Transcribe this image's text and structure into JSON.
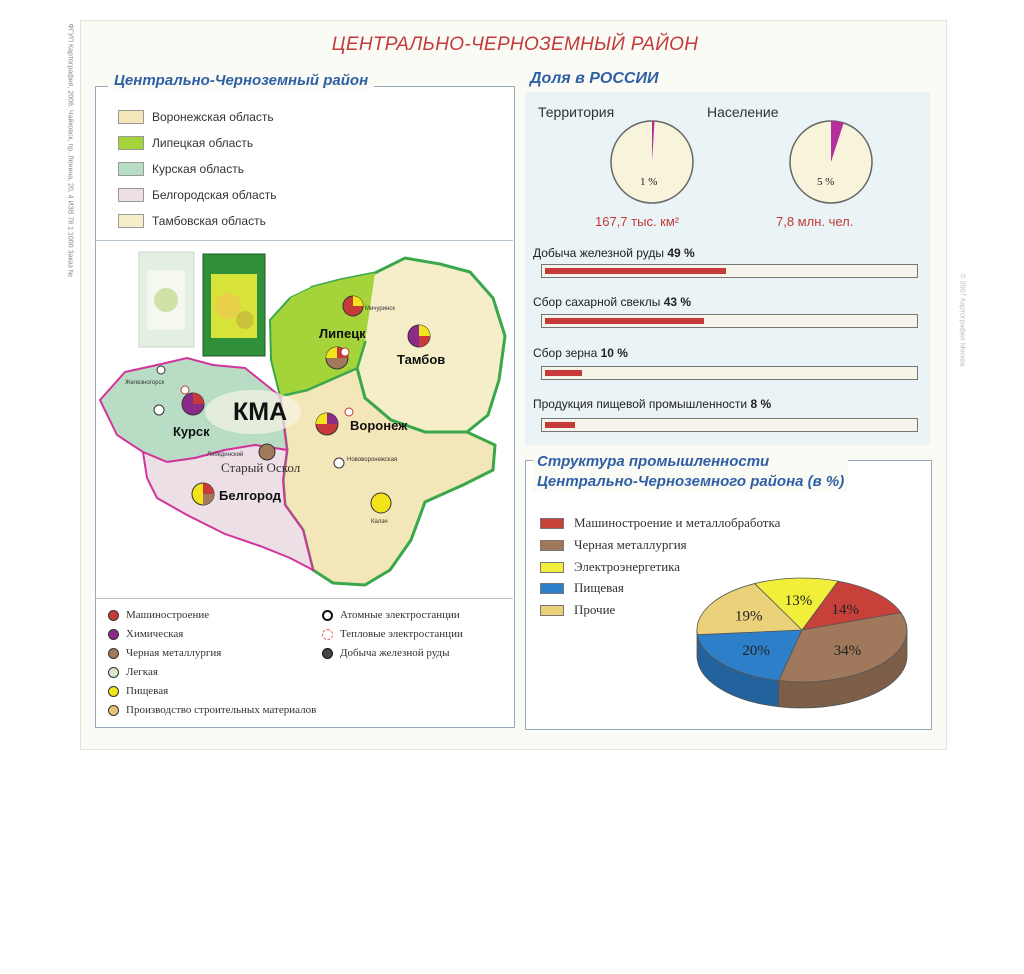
{
  "title": "ЦЕНТРАЛЬНО-ЧЕРНОЗЕМНЫЙ РАЙОН",
  "side_text": "ФГУП Картография, 2006. Чайковск, пр. Ленина, 20, 4 ИЗВ 78 1:1000 Заказ №",
  "side_text_right": "© 2007 Картография Москва",
  "map_panel": {
    "title": "Центрально-Черноземный район",
    "regions": [
      {
        "label": "Воронежская область",
        "color": "#f3e6b8"
      },
      {
        "label": "Липецкая область",
        "color": "#a4d43a"
      },
      {
        "label": "Курская область",
        "color": "#b9ddc4"
      },
      {
        "label": "Белгородская область",
        "color": "#ecdfe6"
      },
      {
        "label": "Тамбовская область",
        "color": "#f6eec9"
      }
    ],
    "map_labels": {
      "kma": "КМА",
      "lipetsk": "Липецк",
      "tambov": "Тамбов",
      "kursk": "Курск",
      "voronezh": "Воронеж",
      "belgorod": "Белгород",
      "stary_oskol": "Старый Оскол",
      "metallogorsk": "Мичуринск",
      "zheleznogorsk": "Железногорск",
      "lebedinsky": "Лебединский",
      "novovoronezhsk": "Нововоронежская",
      "kalach": "Калач"
    },
    "legend": [
      {
        "label": "Машиностроение",
        "color": "#c73a3a",
        "icon": "industry-dot"
      },
      {
        "label": "Химическая",
        "color": "#8a2b8a",
        "icon": "industry-dot"
      },
      {
        "label": "Черная металлургия",
        "color": "#a07a5a",
        "icon": "industry-dot"
      },
      {
        "label": "Легкая",
        "color": "#d8e8d0",
        "icon": "industry-dot"
      },
      {
        "label": "Пищевая",
        "color": "#f2e31a",
        "icon": "industry-dot"
      },
      {
        "label": "Производство строительных материалов",
        "color": "#e9c27a",
        "icon": "industry-dot"
      },
      {
        "label": "Атомные электростанции",
        "icon": "atom-icon"
      },
      {
        "label": "Тепловые электростанции",
        "icon": "thermal-icon"
      },
      {
        "label": "Добыча железной руды",
        "icon": "ore-icon"
      }
    ]
  },
  "share_panel": {
    "title": "Доля в РОССИИ",
    "territory": {
      "label": "Территория",
      "percent_text": "1 %",
      "percent": 1,
      "value": "167,7 тыс. км²"
    },
    "population": {
      "label": "Население",
      "percent_text": "5 %",
      "percent": 5,
      "value": "7,8 млн. чел."
    },
    "bars": [
      {
        "label": "Добыча железной руды",
        "value_text": "49 %",
        "percent": 49
      },
      {
        "label": "Сбор сахарной свеклы",
        "value_text": "43 %",
        "percent": 43
      },
      {
        "label": "Сбор зерна",
        "value_text": "10 %",
        "percent": 10
      },
      {
        "label": "Продукция пищевой промышленности",
        "value_text": "8 %",
        "percent": 8
      }
    ]
  },
  "structure_panel": {
    "title_line1": "Структура промышленности",
    "title_line2": "Центрально-Черноземного района (в %)",
    "legend": [
      {
        "label": "Машиностроение и металлобработка",
        "color": "#c7413a"
      },
      {
        "label": "Черная металлургия",
        "color": "#a0785c"
      },
      {
        "label": "Электроэнергетика",
        "color": "#f2ef3a"
      },
      {
        "label": "Пищевая",
        "color": "#2d7fc9"
      },
      {
        "label": "Прочие",
        "color": "#ead17a"
      }
    ]
  },
  "chart_data": {
    "type": "pie",
    "title": "Структура промышленности Центрально-Черноземного района (в %)",
    "slices": [
      {
        "name": "Машиностроение и металлобработка",
        "value": 14,
        "label": "14%",
        "color": "#c7413a"
      },
      {
        "name": "Черная металлургия",
        "value": 34,
        "label": "34%",
        "color": "#a0785c"
      },
      {
        "name": "Пищевая",
        "value": 20,
        "label": "20%",
        "color": "#2d7fc9"
      },
      {
        "name": "Прочие",
        "value": 19,
        "label": "19%",
        "color": "#ead17a"
      },
      {
        "name": "Электроэнергетика",
        "value": 13,
        "label": "13%",
        "color": "#f2ef3a"
      }
    ]
  }
}
